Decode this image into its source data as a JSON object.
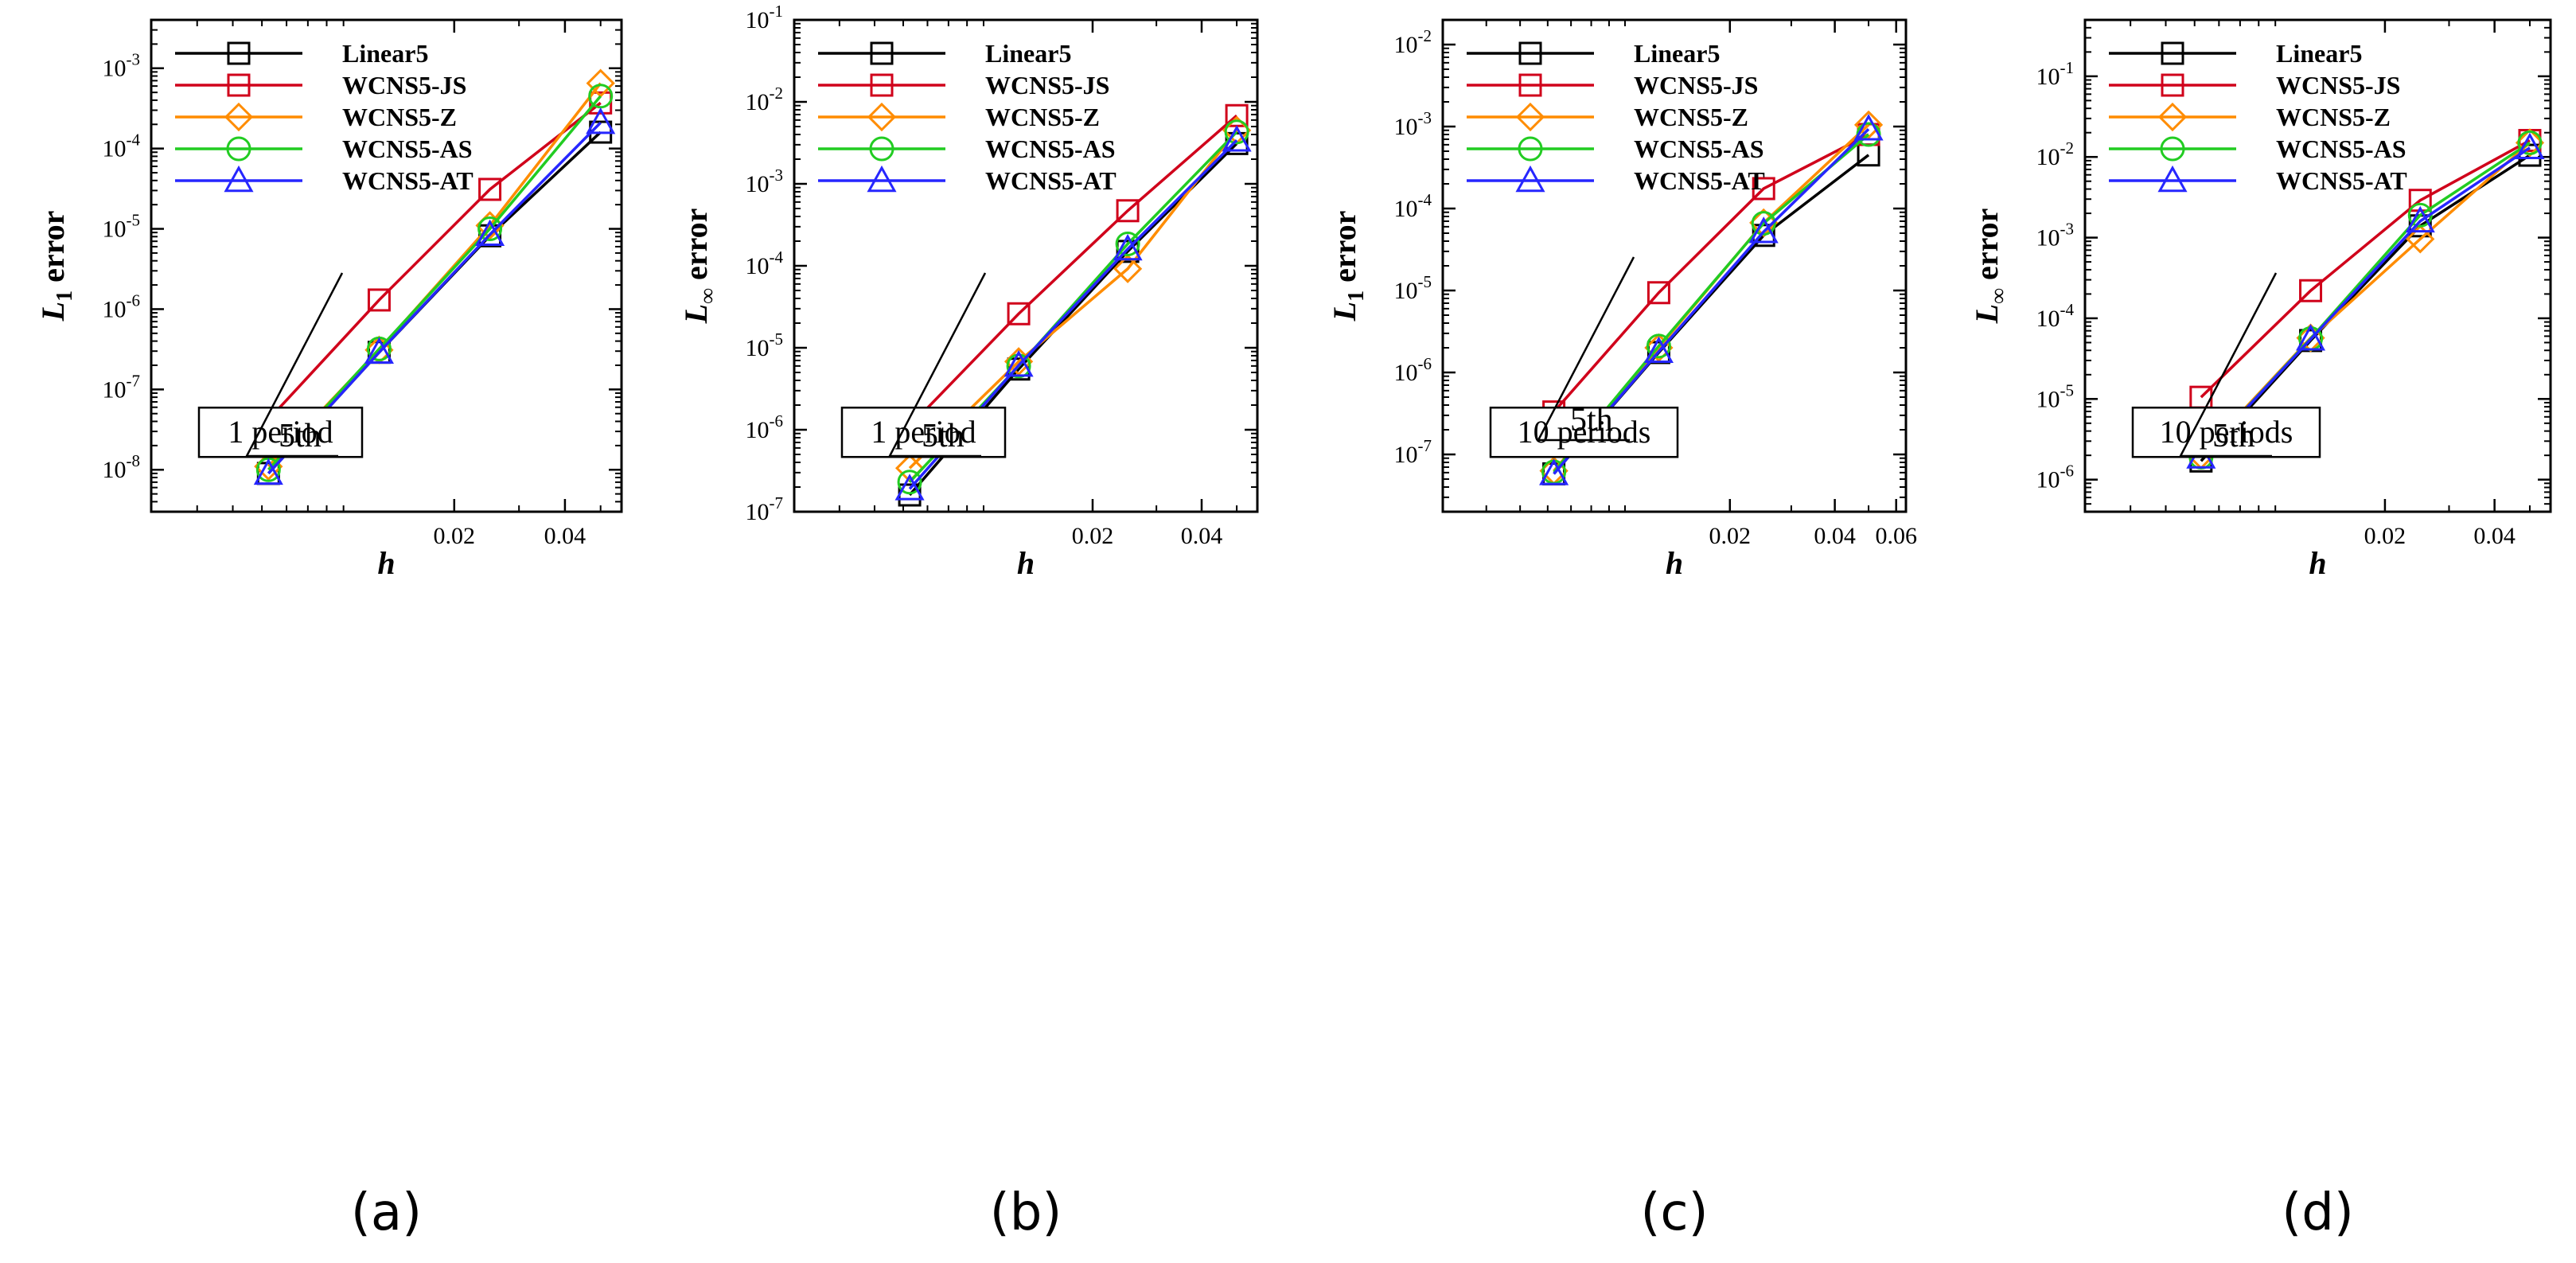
{
  "colors": {
    "Linear5": "#000000",
    "WCNS5-JS": "#d0021b",
    "WCNS5-Z": "#ff8c00",
    "WCNS5-AS": "#22cc22",
    "WCNS5-AT": "#2626ff"
  },
  "chart_data": [
    {
      "type": "line",
      "panel_label": "(a)",
      "xlabel": "h",
      "ylabel": "L",
      "ylabel_sub": "1",
      "ylabel_suffix": " error",
      "xlim": [
        0.003,
        0.057
      ],
      "xticks": [
        0.02,
        0.04
      ],
      "xtick_labels": [
        "0.02",
        "0.04"
      ],
      "ylim": [
        3e-09,
        0.004
      ],
      "ytick_exponents": [
        -8,
        -7,
        -6,
        -5,
        -4,
        -3
      ],
      "annotation": "1 period",
      "slope_label": "5th",
      "x": [
        0.00625,
        0.0125,
        0.025,
        0.05
      ],
      "series": [
        {
          "name": "Linear5",
          "marker": "square",
          "values": [
            9e-09,
            2.9e-07,
            8.2e-06,
            0.00016
          ]
        },
        {
          "name": "WCNS5-JS",
          "marker": "square",
          "values": [
            4.2e-08,
            1.3e-06,
            3.1e-05,
            0.00037
          ]
        },
        {
          "name": "WCNS5-Z",
          "marker": "diamond",
          "values": [
            1.1e-08,
            3.1e-07,
            1.1e-05,
            0.00065
          ]
        },
        {
          "name": "WCNS5-AS",
          "marker": "circle",
          "values": [
            1e-08,
            3.2e-07,
            1e-05,
            0.00045
          ]
        },
        {
          "name": "WCNS5-AT",
          "marker": "triangle",
          "values": [
            9e-09,
            2.9e-07,
            8.5e-06,
            0.00021
          ]
        }
      ]
    },
    {
      "type": "line",
      "panel_label": "(b)",
      "xlabel": "h",
      "ylabel": "L",
      "ylabel_sub": "∞",
      "ylabel_suffix": " error",
      "xlim": [
        0.003,
        0.057
      ],
      "xticks": [
        0.02,
        0.04
      ],
      "xtick_labels": [
        "0.02",
        "0.04"
      ],
      "ylim": [
        1e-07,
        0.1
      ],
      "ytick_exponents": [
        -7,
        -6,
        -5,
        -4,
        -3,
        -2,
        -1
      ],
      "annotation": "1 period",
      "slope_label": "5th",
      "x": [
        0.00625,
        0.0125,
        0.025,
        0.05
      ],
      "series": [
        {
          "name": "Linear5",
          "marker": "square",
          "values": [
            1.6e-07,
            5.5e-06,
            0.00015,
            0.0031
          ]
        },
        {
          "name": "WCNS5-JS",
          "marker": "square",
          "values": [
            1.1e-06,
            2.6e-05,
            0.00047,
            0.0068
          ]
        },
        {
          "name": "WCNS5-Z",
          "marker": "diamond",
          "values": [
            3.4e-07,
            6.8e-06,
            9.2e-05,
            0.0045
          ]
        },
        {
          "name": "WCNS5-AS",
          "marker": "circle",
          "values": [
            2.3e-07,
            6e-06,
            0.000185,
            0.0043
          ]
        },
        {
          "name": "WCNS5-AT",
          "marker": "triangle",
          "values": [
            1.9e-07,
            6.1e-06,
            0.00016,
            0.0034
          ]
        }
      ]
    },
    {
      "type": "line",
      "panel_label": "(c)",
      "xlabel": "h",
      "ylabel": "L",
      "ylabel_sub": "1",
      "ylabel_suffix": " error",
      "xlim": [
        0.003,
        0.064
      ],
      "xticks": [
        0.02,
        0.04,
        0.06
      ],
      "xtick_labels": [
        "0.02",
        "0.04",
        "0.06"
      ],
      "ylim": [
        2e-08,
        0.02
      ],
      "ytick_exponents": [
        -7,
        -6,
        -5,
        -4,
        -3,
        -2
      ],
      "annotation": "10 periods",
      "slope_label": "5th",
      "x": [
        0.00625,
        0.0125,
        0.025,
        0.05
      ],
      "series": [
        {
          "name": "Linear5",
          "marker": "square",
          "values": [
            5.8e-08,
            1.75e-06,
            4.7e-05,
            0.00045
          ]
        },
        {
          "name": "WCNS5-JS",
          "marker": "square",
          "values": [
            3.3e-07,
            9.4e-06,
            0.000175,
            0.0008
          ]
        },
        {
          "name": "WCNS5-Z",
          "marker": "diamond",
          "values": [
            6.3e-08,
            2e-06,
            6.7e-05,
            0.00105
          ]
        },
        {
          "name": "WCNS5-AS",
          "marker": "circle",
          "values": [
            6.1e-08,
            2.1e-06,
            6.6e-05,
            0.0008
          ]
        },
        {
          "name": "WCNS5-AT",
          "marker": "triangle",
          "values": [
            5.8e-08,
            1.8e-06,
            5.2e-05,
            0.00093
          ]
        }
      ]
    },
    {
      "type": "line",
      "panel_label": "(d)",
      "xlabel": "h",
      "ylabel": "L",
      "ylabel_sub": "∞",
      "ylabel_suffix": " error",
      "xlim": [
        0.003,
        0.057
      ],
      "xticks": [
        0.02,
        0.04
      ],
      "xtick_labels": [
        "0.02",
        "0.04"
      ],
      "ylim": [
        4e-07,
        0.5
      ],
      "ytick_exponents": [
        -6,
        -5,
        -4,
        -3,
        -2,
        -1
      ],
      "annotation": "10 periods",
      "slope_label": "5th",
      "x": [
        0.00625,
        0.0125,
        0.025,
        0.05
      ],
      "series": [
        {
          "name": "Linear5",
          "marker": "square",
          "values": [
            1.7e-06,
            5.3e-05,
            0.0014,
            0.0105
          ]
        },
        {
          "name": "WCNS5-JS",
          "marker": "square",
          "values": [
            1.05e-05,
            0.00022,
            0.0029,
            0.016
          ]
        },
        {
          "name": "WCNS5-Z",
          "marker": "diamond",
          "values": [
            2e-06,
            5.7e-05,
            0.00096,
            0.015
          ]
        },
        {
          "name": "WCNS5-AS",
          "marker": "circle",
          "values": [
            1.9e-06,
            5.6e-05,
            0.0019,
            0.015
          ]
        },
        {
          "name": "WCNS5-AT",
          "marker": "triangle",
          "values": [
            1.9e-06,
            5.5e-05,
            0.0016,
            0.013
          ]
        }
      ]
    }
  ]
}
